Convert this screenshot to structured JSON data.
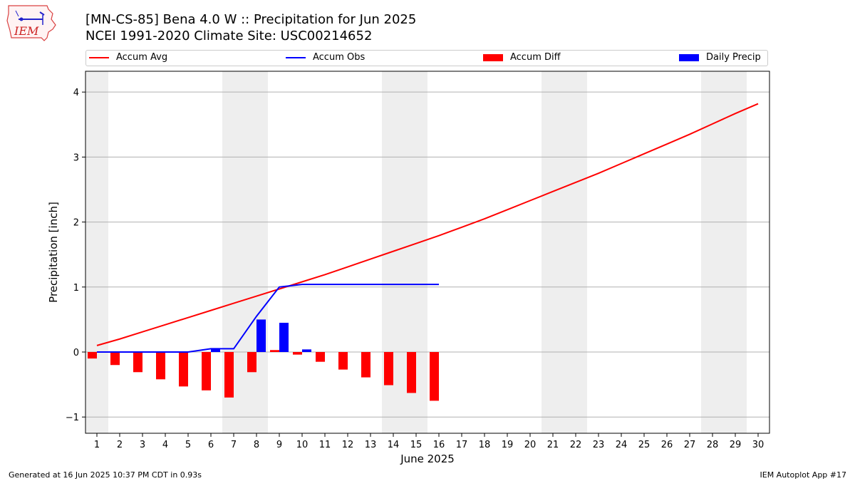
{
  "logo": {
    "text": "IEM",
    "icon": "iowa-state-outline-weather-icon"
  },
  "header": {
    "title": "[MN-CS-85] Bena 4.0 W :: Precipitation for Jun 2025",
    "subtitle": "NCEI 1991-2020 Climate Site: USC00214652"
  },
  "legend": {
    "accum_avg": "Accum Avg",
    "accum_obs": "Accum Obs",
    "accum_diff": "Accum Diff",
    "daily_precip": "Daily Precip"
  },
  "colors": {
    "avg": "#ff0000",
    "obs": "#0000ff",
    "diff": "#ff0000",
    "daily": "#0000ff",
    "weekend": "#eeeeee"
  },
  "footer": {
    "left": "Generated at 16 Jun 2025 10:37 PM CDT in 0.93s",
    "right": "IEM Autoplot App #17"
  },
  "chart_data": {
    "type": "bar",
    "xlabel": "June 2025",
    "ylabel": "Precipitation [inch]",
    "xlim": [
      0.5,
      30.5
    ],
    "ylim": [
      -1.25,
      4.32
    ],
    "x_ticks": [
      1,
      2,
      3,
      4,
      5,
      6,
      7,
      8,
      9,
      10,
      11,
      12,
      13,
      14,
      15,
      16,
      17,
      18,
      19,
      20,
      21,
      22,
      23,
      24,
      25,
      26,
      27,
      28,
      29,
      30
    ],
    "y_ticks": [
      -1,
      0,
      1,
      2,
      3,
      4
    ],
    "grid": true,
    "legend_position": "top",
    "weekend_shading": [
      [
        0.5,
        1.5
      ],
      [
        6.5,
        8.5
      ],
      [
        13.5,
        15.5
      ],
      [
        20.5,
        22.5
      ],
      [
        27.5,
        29.5
      ]
    ],
    "series": [
      {
        "name": "Accum Avg",
        "type": "line",
        "x": [
          1,
          2,
          3,
          4,
          5,
          6,
          7,
          8,
          9,
          10,
          11,
          12,
          13,
          14,
          15,
          16,
          17,
          18,
          19,
          20,
          21,
          22,
          23,
          24,
          25,
          26,
          27,
          28,
          29,
          30
        ],
        "values": [
          0.1,
          0.2,
          0.31,
          0.42,
          0.53,
          0.64,
          0.75,
          0.86,
          0.97,
          1.08,
          1.19,
          1.31,
          1.43,
          1.55,
          1.67,
          1.79,
          1.92,
          2.05,
          2.19,
          2.33,
          2.47,
          2.61,
          2.75,
          2.9,
          3.05,
          3.2,
          3.35,
          3.51,
          3.67,
          3.82
        ]
      },
      {
        "name": "Accum Obs",
        "type": "line",
        "x": [
          1,
          2,
          3,
          4,
          5,
          6,
          7,
          8,
          9,
          10,
          11,
          12,
          13,
          14,
          15,
          16
        ],
        "values": [
          0.0,
          0.0,
          0.0,
          0.0,
          0.0,
          0.05,
          0.05,
          0.55,
          1.0,
          1.04,
          1.04,
          1.04,
          1.04,
          1.04,
          1.04,
          1.04
        ]
      },
      {
        "name": "Accum Diff",
        "type": "bar",
        "x": [
          1,
          2,
          3,
          4,
          5,
          6,
          7,
          8,
          9,
          10,
          11,
          12,
          13,
          14,
          15,
          16
        ],
        "values": [
          -0.1,
          -0.2,
          -0.31,
          -0.42,
          -0.53,
          -0.59,
          -0.7,
          -0.31,
          0.03,
          -0.04,
          -0.15,
          -0.27,
          -0.39,
          -0.51,
          -0.63,
          -0.75
        ]
      },
      {
        "name": "Daily Precip",
        "type": "bar",
        "x": [
          1,
          2,
          3,
          4,
          5,
          6,
          7,
          8,
          9,
          10,
          11,
          12,
          13,
          14,
          15,
          16
        ],
        "values": [
          0,
          0,
          0,
          0,
          0,
          0.05,
          0,
          0.5,
          0.45,
          0.04,
          0,
          0,
          0,
          0,
          0,
          0
        ]
      }
    ]
  }
}
